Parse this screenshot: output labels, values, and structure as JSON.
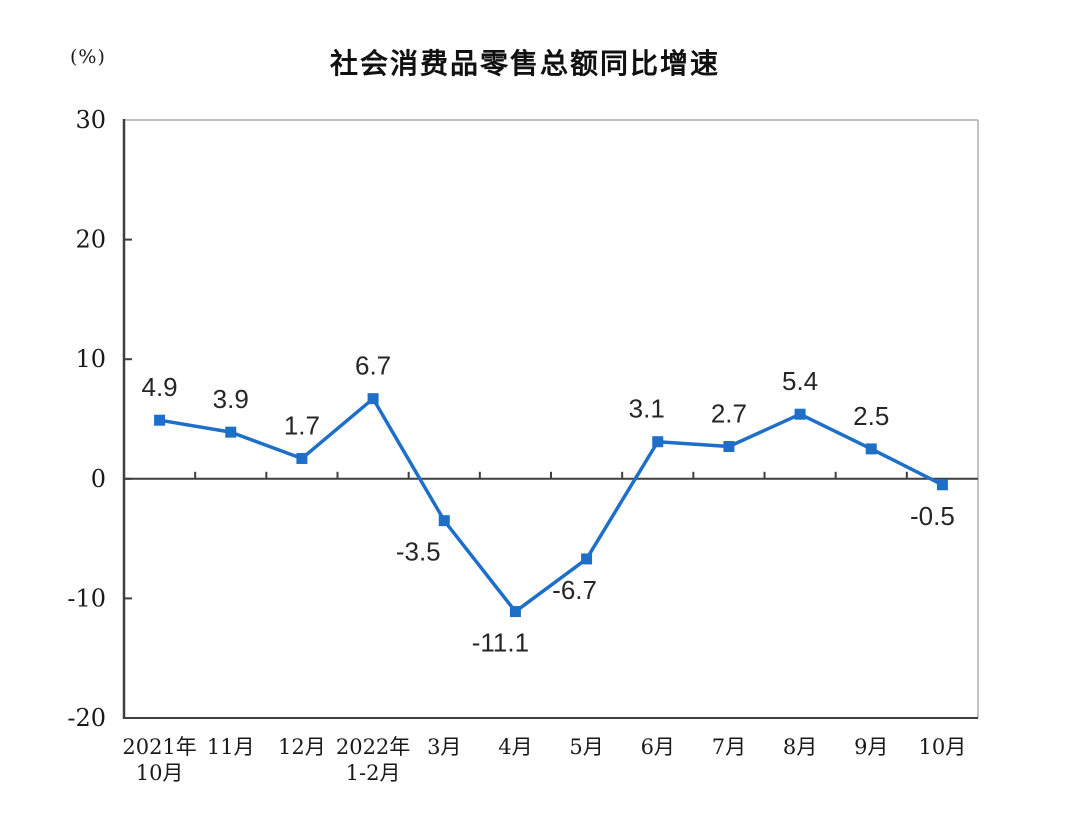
{
  "header": {
    "unit_label": "(%)",
    "title": "社会消费品零售总额同比增速"
  },
  "chart_data": {
    "type": "line",
    "title": "社会消费品零售总额同比增速",
    "unit": "(%)",
    "series_name": "社会消费品零售总额同比增速",
    "categories": [
      "2021年\n10月",
      "11月",
      "12月",
      "2022年\n1-2月",
      "3月",
      "4月",
      "5月",
      "6月",
      "7月",
      "8月",
      "9月",
      "10月"
    ],
    "values": [
      4.9,
      3.9,
      1.7,
      6.7,
      -3.5,
      -11.1,
      -6.7,
      3.1,
      2.7,
      5.4,
      2.5,
      -0.5
    ],
    "data_labels": [
      "4.9",
      "3.9",
      "1.7",
      "6.7",
      "-3.5",
      "-11.1",
      "-6.7",
      "3.1",
      "2.7",
      "5.4",
      "2.5",
      "-0.5"
    ],
    "xlabel": "",
    "ylabel": "(%)",
    "ylim": [
      -20,
      30
    ],
    "yticks": [
      30,
      20,
      10,
      0,
      -10,
      -20
    ],
    "ytick_step": 10,
    "grid": false,
    "legend_position": "none",
    "marker": "square",
    "zero_baseline": true,
    "label_dx": [
      0,
      0,
      0,
      0,
      -26,
      -15,
      -12,
      -11,
      0,
      0,
      0,
      -10
    ],
    "colors": {
      "line": "#1e6fc8",
      "marker": "#1e6fc8",
      "axis": "#3f3f3f",
      "plot_border": "#aeaeae",
      "label_text": "#262626",
      "tick_text": "#1a1a1a",
      "background": "#ffffff"
    }
  }
}
